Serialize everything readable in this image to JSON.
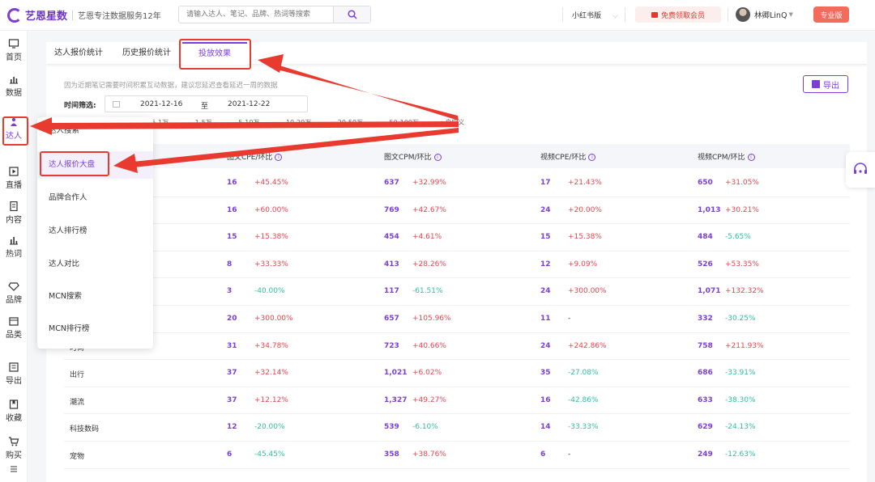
{
  "app": {
    "name": "艺恩星数",
    "slogan": "艺恩专注数据服务12年"
  },
  "search": {
    "placeholder": "请输入达人、笔记、品牌、热词等搜索"
  },
  "platform": {
    "selected": "小红书版"
  },
  "vip_button": "免费领取会员",
  "user": {
    "name": "林卿LinQ"
  },
  "pro_badge": "专业版",
  "sidebar": [
    {
      "label": "首页",
      "icon": "home-icon"
    },
    {
      "label": "数据",
      "icon": "bar-chart-icon"
    },
    {
      "label": "达人",
      "icon": "person-icon"
    },
    {
      "label": "直播",
      "icon": "play-icon"
    },
    {
      "label": "内容",
      "icon": "document-icon"
    },
    {
      "label": "热词",
      "icon": "trend-icon"
    },
    {
      "label": "品牌",
      "icon": "diamond-icon"
    },
    {
      "label": "品类",
      "icon": "box-icon"
    },
    {
      "label": "导出",
      "icon": "export-icon"
    },
    {
      "label": "收藏",
      "icon": "bookmark-icon"
    },
    {
      "label": "购买",
      "icon": "cart-icon"
    }
  ],
  "tabs": [
    "达人报价统计",
    "历史报价统计",
    "投放效果"
  ],
  "active_tab": "投放效果",
  "note": "因为近期笔记需要时间积累互动数据，建议您延迟查看延迟一周的数据",
  "export_label": "导出",
  "time_filter": {
    "label": "时间筛选:",
    "start": "2021-12-16",
    "to": "至",
    "end": "2021-12-22"
  },
  "fans_filter": [
    "5-1万",
    "1-5万",
    "5-10万",
    "10-20万",
    "20-50万",
    "50-100万",
    "自定义"
  ],
  "dropdown": [
    "达人搜索",
    "达人报价大盘",
    "品牌合作人",
    "达人排行榜",
    "达人对比",
    "MCN搜索",
    "MCN排行榜"
  ],
  "table": {
    "headers": [
      "图文CPE/环比",
      "图文CPM/环比",
      "视频CPE/环比",
      "视频CPM/环比"
    ],
    "rows": [
      {
        "cat": "",
        "c1": [
          "16",
          "+45.45%"
        ],
        "c2": [
          "637",
          "+32.99%"
        ],
        "c3": [
          "17",
          "+21.43%"
        ],
        "c4": [
          "650",
          "+31.05%"
        ]
      },
      {
        "cat": "",
        "c1": [
          "16",
          "+60.00%"
        ],
        "c2": [
          "769",
          "+42.67%"
        ],
        "c3": [
          "24",
          "+20.00%"
        ],
        "c4": [
          "1,013",
          "+30.21%"
        ]
      },
      {
        "cat": "",
        "c1": [
          "15",
          "+15.38%"
        ],
        "c2": [
          "454",
          "+4.61%"
        ],
        "c3": [
          "15",
          "+15.38%"
        ],
        "c4": [
          "484",
          "-5.65%"
        ]
      },
      {
        "cat": "",
        "c1": [
          "8",
          "+33.33%"
        ],
        "c2": [
          "413",
          "+28.26%"
        ],
        "c3": [
          "12",
          "+9.09%"
        ],
        "c4": [
          "526",
          "+53.35%"
        ]
      },
      {
        "cat": "",
        "c1": [
          "3",
          "-40.00%"
        ],
        "c2": [
          "117",
          "-61.51%"
        ],
        "c3": [
          "24",
          "+300.00%"
        ],
        "c4": [
          "1,071",
          "+132.32%"
        ]
      },
      {
        "cat": "",
        "c1": [
          "20",
          "+300.00%"
        ],
        "c2": [
          "657",
          "+105.96%"
        ],
        "c3": [
          "11",
          "-"
        ],
        "c4": [
          "332",
          "-30.25%"
        ]
      },
      {
        "cat": "时尚",
        "c1": [
          "31",
          "+34.78%"
        ],
        "c2": [
          "723",
          "+40.66%"
        ],
        "c3": [
          "24",
          "+242.86%"
        ],
        "c4": [
          "758",
          "+211.93%"
        ]
      },
      {
        "cat": "出行",
        "c1": [
          "37",
          "+32.14%"
        ],
        "c2": [
          "1,021",
          "+6.02%"
        ],
        "c3": [
          "35",
          "-27.08%"
        ],
        "c4": [
          "686",
          "-33.91%"
        ]
      },
      {
        "cat": "潮流",
        "c1": [
          "37",
          "+12.12%"
        ],
        "c2": [
          "1,327",
          "+49.27%"
        ],
        "c3": [
          "16",
          "-42.86%"
        ],
        "c4": [
          "633",
          "-38.30%"
        ]
      },
      {
        "cat": "科技数码",
        "c1": [
          "12",
          "-20.00%"
        ],
        "c2": [
          "539",
          "-6.10%"
        ],
        "c3": [
          "14",
          "-33.33%"
        ],
        "c4": [
          "629",
          "-24.13%"
        ]
      },
      {
        "cat": "宠物",
        "c1": [
          "6",
          "-45.45%"
        ],
        "c2": [
          "358",
          "+38.76%"
        ],
        "c3": [
          "6",
          "-"
        ],
        "c4": [
          "249",
          "-12.63%"
        ]
      }
    ]
  }
}
